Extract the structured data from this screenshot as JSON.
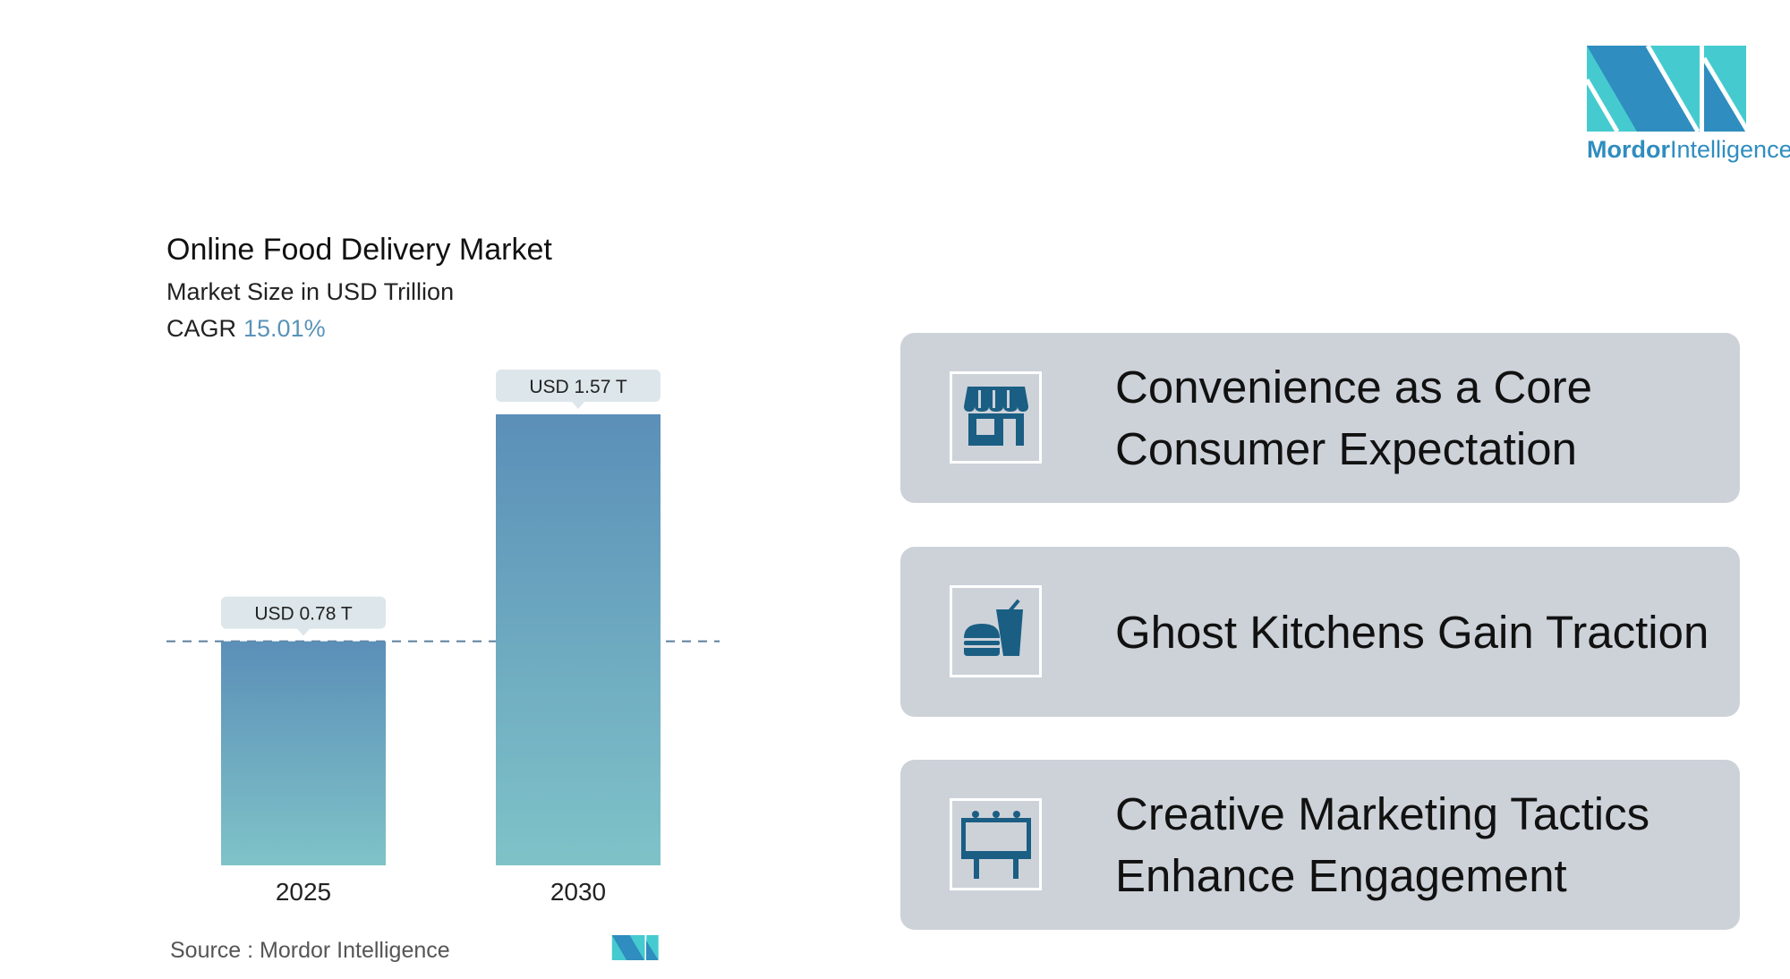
{
  "header": {
    "title": "Online Food Delivery Market",
    "subtitle": "Market Size in USD Trillion",
    "cagr_label": "CAGR",
    "cagr_value": "15.01%"
  },
  "chart_data": {
    "type": "bar",
    "categories": [
      "2025",
      "2030"
    ],
    "values": [
      0.78,
      1.57
    ],
    "data_labels": [
      "USD 0.78 T",
      "USD 1.57 T"
    ],
    "title": "Online Food Delivery Market",
    "ylabel": "Market Size in USD Trillion",
    "ylim": [
      0,
      1.57
    ],
    "reference_line": 0.78,
    "grid": false,
    "colors": {
      "bar_top": "#5b8fb8",
      "bar_bottom": "#7fc3c8",
      "label_bg": "#dde6ea",
      "cagr": "#5a93b8"
    }
  },
  "source": "Source :  Mordor Intelligence",
  "logo": {
    "brand_bold": "Mordor",
    "brand_light": "Intelligence",
    "colors": [
      "#2f8dbf",
      "#45cbcf"
    ]
  },
  "cards": [
    {
      "icon": "storefront-icon",
      "text": "Convenience as a Core Consumer Expectation"
    },
    {
      "icon": "burger-drink-icon",
      "text": "Ghost Kitchens Gain Traction"
    },
    {
      "icon": "billboard-icon",
      "text": "Creative Marketing Tactics Enhance Engagement"
    }
  ],
  "colors": {
    "card_bg": "#cdd2d9",
    "icon": "#1a5e83"
  }
}
